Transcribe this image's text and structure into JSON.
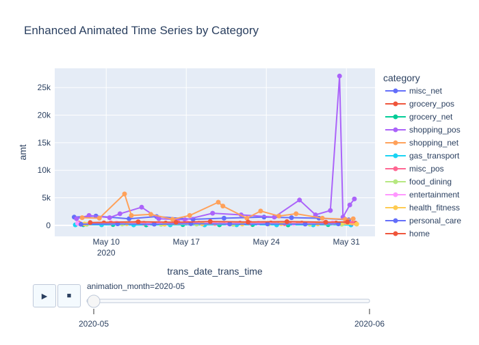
{
  "chart_data": {
    "type": "line",
    "title": "Enhanced Animated Time Series by Category",
    "xlabel": "trans_date_trans_time",
    "ylabel": "amt",
    "x_range": [
      "2020-05-05T12:00",
      "2020-06-02T12:00"
    ],
    "ylim": [
      -2000,
      28500
    ],
    "x_ticks": [
      {
        "date": "2020-05-10",
        "label": "May 10",
        "sublabel": "2020"
      },
      {
        "date": "2020-05-17",
        "label": "May 17",
        "sublabel": ""
      },
      {
        "date": "2020-05-24",
        "label": "May 24",
        "sublabel": ""
      },
      {
        "date": "2020-05-31",
        "label": "May 31",
        "sublabel": ""
      }
    ],
    "y_ticks": [
      {
        "value": 0,
        "label": "0"
      },
      {
        "value": 5000,
        "label": "5k"
      },
      {
        "value": 10000,
        "label": "10k"
      },
      {
        "value": 15000,
        "label": "15k"
      },
      {
        "value": 20000,
        "label": "20k"
      },
      {
        "value": 25000,
        "label": "25k"
      }
    ],
    "grid": true,
    "legend": {
      "title": "category",
      "position": "right"
    },
    "series": [
      {
        "name": "misc_net",
        "color": "#636efa",
        "values": [
          [
            7.2,
            1500
          ],
          [
            9.1,
            1700
          ],
          [
            12.0,
            1200
          ],
          [
            14.4,
            1600
          ],
          [
            17.6,
            1100
          ],
          [
            20.3,
            1300
          ],
          [
            23.8,
            1500
          ],
          [
            26.2,
            1400
          ],
          [
            28.6,
            1300
          ],
          [
            31.2,
            1000
          ]
        ]
      },
      {
        "name": "grocery_pos",
        "color": "#ef553b",
        "values": [
          [
            7.6,
            400
          ],
          [
            9.8,
            450
          ],
          [
            12.6,
            380
          ],
          [
            15.2,
            420
          ],
          [
            18.1,
            390
          ],
          [
            21.7,
            410
          ],
          [
            24.4,
            430
          ],
          [
            27.1,
            400
          ],
          [
            30.1,
            420
          ],
          [
            31.8,
            380
          ]
        ]
      },
      {
        "name": "grocery_net",
        "color": "#00cc96",
        "values": [
          [
            8.0,
            120
          ],
          [
            10.6,
            150
          ],
          [
            13.5,
            90
          ],
          [
            16.7,
            130
          ],
          [
            19.9,
            110
          ],
          [
            22.8,
            140
          ],
          [
            25.9,
            100
          ],
          [
            29.4,
            130
          ]
        ]
      },
      {
        "name": "shopping_pos",
        "color": "#ab63fa",
        "values": [
          [
            7.4,
            1200
          ],
          [
            8.5,
            1800
          ],
          [
            10.3,
            1400
          ],
          [
            11.2,
            2100
          ],
          [
            13.1,
            3300
          ],
          [
            14.6,
            1200
          ],
          [
            16.9,
            1000
          ],
          [
            19.3,
            2200
          ],
          [
            21.8,
            1900
          ],
          [
            24.7,
            1500
          ],
          [
            26.9,
            4600
          ],
          [
            28.3,
            1900
          ],
          [
            29.6,
            2700
          ],
          [
            30.4,
            27100
          ],
          [
            30.7,
            1500
          ],
          [
            31.3,
            3700
          ],
          [
            31.7,
            4800
          ]
        ]
      },
      {
        "name": "shopping_net",
        "color": "#ffa15a",
        "values": [
          [
            7.9,
            1400
          ],
          [
            9.4,
            1300
          ],
          [
            11.6,
            5700
          ],
          [
            12.2,
            1800
          ],
          [
            13.9,
            2000
          ],
          [
            15.8,
            1100
          ],
          [
            17.3,
            1800
          ],
          [
            19.8,
            4200
          ],
          [
            20.2,
            3500
          ],
          [
            22.3,
            1300
          ],
          [
            23.5,
            2600
          ],
          [
            25.1,
            1700
          ],
          [
            26.6,
            2100
          ],
          [
            28.9,
            1300
          ],
          [
            30.9,
            1100
          ],
          [
            31.6,
            1200
          ]
        ]
      },
      {
        "name": "gas_transport",
        "color": "#19d3f3",
        "values": [
          [
            7.3,
            90
          ],
          [
            9.6,
            110
          ],
          [
            12.4,
            80
          ],
          [
            15.6,
            100
          ],
          [
            18.6,
            95
          ],
          [
            21.4,
            105
          ],
          [
            24.9,
            90
          ],
          [
            28.1,
            100
          ],
          [
            31.4,
            85
          ]
        ]
      },
      {
        "name": "misc_pos",
        "color": "#ff6692",
        "values": [
          [
            7.7,
            300
          ],
          [
            10.4,
            450
          ],
          [
            13.3,
            380
          ],
          [
            16.3,
            500
          ],
          [
            19.5,
            350
          ],
          [
            22.6,
            420
          ],
          [
            25.6,
            300
          ],
          [
            29.1,
            460
          ],
          [
            31.5,
            400
          ]
        ]
      },
      {
        "name": "food_dining",
        "color": "#b6e880",
        "values": [
          [
            8.3,
            200
          ],
          [
            11.4,
            250
          ],
          [
            14.8,
            180
          ],
          [
            17.9,
            230
          ],
          [
            21.1,
            200
          ],
          [
            24.2,
            260
          ],
          [
            27.8,
            210
          ],
          [
            30.6,
            190
          ]
        ]
      },
      {
        "name": "entertainment",
        "color": "#ff97ff",
        "values": [
          [
            7.5,
            350
          ],
          [
            10.9,
            420
          ],
          [
            13.7,
            300
          ],
          [
            17.1,
            480
          ],
          [
            20.6,
            360
          ],
          [
            23.3,
            410
          ],
          [
            26.4,
            330
          ],
          [
            29.8,
            450
          ]
        ]
      },
      {
        "name": "health_fitness",
        "color": "#fecb52",
        "values": [
          [
            8.1,
            250
          ],
          [
            11.8,
            300
          ],
          [
            15.1,
            220
          ],
          [
            18.4,
            280
          ],
          [
            21.9,
            240
          ],
          [
            25.3,
            300
          ],
          [
            28.5,
            260
          ],
          [
            31.9,
            230
          ]
        ]
      },
      {
        "name": "personal_care",
        "color": "#636efa",
        "values": [
          [
            7.8,
            200
          ],
          [
            11.0,
            280
          ],
          [
            14.2,
            220
          ],
          [
            17.4,
            300
          ],
          [
            20.8,
            240
          ],
          [
            24.1,
            260
          ],
          [
            27.4,
            230
          ],
          [
            30.3,
            280
          ]
        ]
      },
      {
        "name": "home",
        "color": "#ef553b",
        "values": [
          [
            8.6,
            500
          ],
          [
            12.8,
            650
          ],
          [
            16.1,
            550
          ],
          [
            19.1,
            700
          ],
          [
            22.4,
            600
          ],
          [
            25.8,
            680
          ],
          [
            29.2,
            580
          ],
          [
            31.1,
            620
          ]
        ]
      }
    ],
    "x_values_note_removed": true
  },
  "animation": {
    "play_icon": "play-icon",
    "stop_icon": "stop-icon",
    "current_label": "animation_month=2020-05",
    "steps": [
      "2020-05",
      "2020-06"
    ],
    "current_index": 0
  }
}
